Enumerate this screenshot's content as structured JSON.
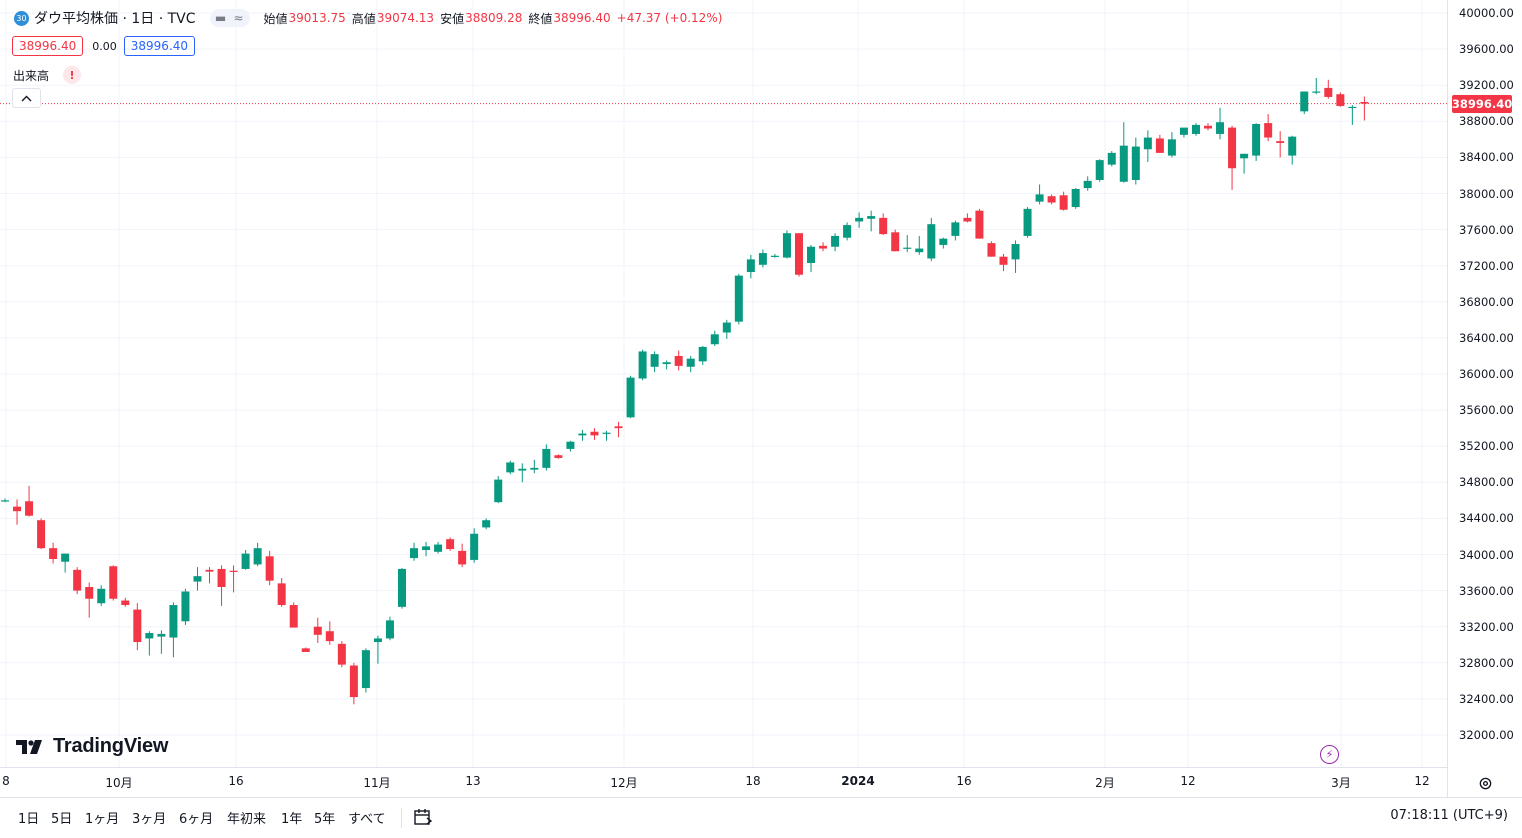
{
  "header": {
    "symbol_badge": "30",
    "title": "ダウ平均株価 · 1日 · TVC",
    "open_label": "始値",
    "open_value": "39013.75",
    "high_label": "高値",
    "high_value": "39074.13",
    "low_label": "安値",
    "low_value": "38809.28",
    "close_label": "終値",
    "close_value": "38996.40",
    "change": "+47.37 (+0.12%)"
  },
  "trade": {
    "sell_price": "38996.40",
    "spread": "0.00",
    "buy_price": "38996.40"
  },
  "volume_label": "出来高",
  "volume_warning": "!",
  "brand": "TradingView",
  "last_price_label": "38996.40",
  "timeframes": [
    "1日",
    "5日",
    "1ヶ月",
    "3ヶ月",
    "6ヶ月",
    "年初来",
    "1年",
    "5年",
    "すべて"
  ],
  "clock": "07:18:11 (UTC+9)",
  "colors": {
    "up": "#089981",
    "down": "#f23645",
    "grid": "#f0f3fa"
  },
  "chart_data": {
    "type": "candlestick",
    "y_axis_ticks": [
      "40000.00",
      "39600.00",
      "39200.00",
      "38800.00",
      "38400.00",
      "38000.00",
      "37600.00",
      "37200.00",
      "36800.00",
      "36400.00",
      "36000.00",
      "35600.00",
      "35200.00",
      "34800.00",
      "34400.00",
      "34000.00",
      "33600.00",
      "33200.00",
      "32800.00",
      "32400.00",
      "32000.00"
    ],
    "x_axis_ticks": [
      "8",
      "10月",
      "16",
      "11月",
      "13",
      "12月",
      "18",
      "2024",
      "16",
      "2月",
      "12",
      "3月",
      "12"
    ],
    "ylim": [
      31850,
      40100
    ],
    "candles": [
      {
        "o": 34600,
        "h": 34620,
        "l": 34580,
        "c": 34600
      },
      {
        "o": 34530,
        "h": 34610,
        "l": 34330,
        "c": 34480
      },
      {
        "o": 34590,
        "h": 34760,
        "l": 34420,
        "c": 34430
      },
      {
        "o": 34380,
        "h": 34400,
        "l": 34060,
        "c": 34070
      },
      {
        "o": 34070,
        "h": 34130,
        "l": 33900,
        "c": 33950
      },
      {
        "o": 33920,
        "h": 34000,
        "l": 33800,
        "c": 34010
      },
      {
        "o": 33830,
        "h": 33860,
        "l": 33560,
        "c": 33600
      },
      {
        "o": 33640,
        "h": 33690,
        "l": 33300,
        "c": 33510
      },
      {
        "o": 33460,
        "h": 33660,
        "l": 33430,
        "c": 33620
      },
      {
        "o": 33870,
        "h": 33880,
        "l": 33490,
        "c": 33510
      },
      {
        "o": 33490,
        "h": 33520,
        "l": 33420,
        "c": 33440
      },
      {
        "o": 33390,
        "h": 33460,
        "l": 32940,
        "c": 33030
      },
      {
        "o": 33070,
        "h": 33150,
        "l": 32880,
        "c": 33130
      },
      {
        "o": 33090,
        "h": 33160,
        "l": 32900,
        "c": 33120
      },
      {
        "o": 33080,
        "h": 33470,
        "l": 32860,
        "c": 33440
      },
      {
        "o": 33260,
        "h": 33620,
        "l": 33220,
        "c": 33590
      },
      {
        "o": 33700,
        "h": 33860,
        "l": 33600,
        "c": 33760
      },
      {
        "o": 33830,
        "h": 33860,
        "l": 33680,
        "c": 33810
      },
      {
        "o": 33840,
        "h": 33880,
        "l": 33430,
        "c": 33640
      },
      {
        "o": 33820,
        "h": 33880,
        "l": 33580,
        "c": 33810
      },
      {
        "o": 33840,
        "h": 34050,
        "l": 33830,
        "c": 34010
      },
      {
        "o": 33890,
        "h": 34130,
        "l": 33870,
        "c": 34070
      },
      {
        "o": 33980,
        "h": 34040,
        "l": 33660,
        "c": 33710
      },
      {
        "o": 33680,
        "h": 33740,
        "l": 33420,
        "c": 33440
      },
      {
        "o": 33440,
        "h": 33470,
        "l": 33200,
        "c": 33190
      },
      {
        "o": 32960,
        "h": 32970,
        "l": 32920,
        "c": 32920
      },
      {
        "o": 33200,
        "h": 33300,
        "l": 33020,
        "c": 33110
      },
      {
        "o": 33150,
        "h": 33260,
        "l": 33000,
        "c": 33040
      },
      {
        "o": 33010,
        "h": 33040,
        "l": 32750,
        "c": 32780
      },
      {
        "o": 32770,
        "h": 32800,
        "l": 32340,
        "c": 32420
      },
      {
        "o": 32520,
        "h": 32960,
        "l": 32470,
        "c": 32940
      },
      {
        "o": 33030,
        "h": 33100,
        "l": 32790,
        "c": 33070
      },
      {
        "o": 33070,
        "h": 33310,
        "l": 33050,
        "c": 33270
      },
      {
        "o": 33420,
        "h": 33850,
        "l": 33400,
        "c": 33840
      },
      {
        "o": 33960,
        "h": 34130,
        "l": 33930,
        "c": 34070
      },
      {
        "o": 34050,
        "h": 34140,
        "l": 33980,
        "c": 34090
      },
      {
        "o": 34030,
        "h": 34140,
        "l": 34010,
        "c": 34110
      },
      {
        "o": 34170,
        "h": 34190,
        "l": 34040,
        "c": 34060
      },
      {
        "o": 34040,
        "h": 34120,
        "l": 33860,
        "c": 33890
      },
      {
        "o": 33940,
        "h": 34290,
        "l": 33910,
        "c": 34230
      },
      {
        "o": 34300,
        "h": 34400,
        "l": 34280,
        "c": 34380
      },
      {
        "o": 34580,
        "h": 34870,
        "l": 34570,
        "c": 34830
      },
      {
        "o": 34910,
        "h": 35040,
        "l": 34890,
        "c": 35020
      },
      {
        "o": 34930,
        "h": 35010,
        "l": 34800,
        "c": 34950
      },
      {
        "o": 34940,
        "h": 35050,
        "l": 34900,
        "c": 34960
      },
      {
        "o": 34960,
        "h": 35220,
        "l": 34930,
        "c": 35170
      },
      {
        "o": 35100,
        "h": 35110,
        "l": 35060,
        "c": 35070
      },
      {
        "o": 35170,
        "h": 35260,
        "l": 35140,
        "c": 35250
      },
      {
        "o": 35320,
        "h": 35380,
        "l": 35260,
        "c": 35340
      },
      {
        "o": 35360,
        "h": 35400,
        "l": 35270,
        "c": 35320
      },
      {
        "o": 35340,
        "h": 35370,
        "l": 35260,
        "c": 35350
      },
      {
        "o": 35420,
        "h": 35470,
        "l": 35300,
        "c": 35400
      },
      {
        "o": 35520,
        "h": 35980,
        "l": 35510,
        "c": 35960
      },
      {
        "o": 35950,
        "h": 36270,
        "l": 35930,
        "c": 36250
      },
      {
        "o": 36080,
        "h": 36250,
        "l": 36020,
        "c": 36220
      },
      {
        "o": 36110,
        "h": 36150,
        "l": 36050,
        "c": 36130
      },
      {
        "o": 36200,
        "h": 36260,
        "l": 36040,
        "c": 36090
      },
      {
        "o": 36080,
        "h": 36200,
        "l": 36020,
        "c": 36170
      },
      {
        "o": 36140,
        "h": 36310,
        "l": 36100,
        "c": 36300
      },
      {
        "o": 36330,
        "h": 36480,
        "l": 36310,
        "c": 36440
      },
      {
        "o": 36460,
        "h": 36600,
        "l": 36390,
        "c": 36570
      },
      {
        "o": 36580,
        "h": 37110,
        "l": 36550,
        "c": 37090
      },
      {
        "o": 37130,
        "h": 37320,
        "l": 37060,
        "c": 37270
      },
      {
        "o": 37210,
        "h": 37380,
        "l": 37180,
        "c": 37340
      },
      {
        "o": 37310,
        "h": 37330,
        "l": 37290,
        "c": 37310
      },
      {
        "o": 37290,
        "h": 37590,
        "l": 37280,
        "c": 37560
      },
      {
        "o": 37560,
        "h": 37560,
        "l": 37080,
        "c": 37100
      },
      {
        "o": 37230,
        "h": 37430,
        "l": 37130,
        "c": 37410
      },
      {
        "o": 37420,
        "h": 37460,
        "l": 37360,
        "c": 37390
      },
      {
        "o": 37410,
        "h": 37560,
        "l": 37360,
        "c": 37530
      },
      {
        "o": 37510,
        "h": 37680,
        "l": 37480,
        "c": 37650
      },
      {
        "o": 37690,
        "h": 37790,
        "l": 37620,
        "c": 37730
      },
      {
        "o": 37720,
        "h": 37810,
        "l": 37580,
        "c": 37750
      },
      {
        "o": 37730,
        "h": 37780,
        "l": 37540,
        "c": 37550
      },
      {
        "o": 37570,
        "h": 37600,
        "l": 37360,
        "c": 37360
      },
      {
        "o": 37390,
        "h": 37540,
        "l": 37350,
        "c": 37400
      },
      {
        "o": 37350,
        "h": 37530,
        "l": 37320,
        "c": 37390
      },
      {
        "o": 37280,
        "h": 37730,
        "l": 37250,
        "c": 37660
      },
      {
        "o": 37430,
        "h": 37510,
        "l": 37390,
        "c": 37500
      },
      {
        "o": 37530,
        "h": 37700,
        "l": 37480,
        "c": 37680
      },
      {
        "o": 37730,
        "h": 37780,
        "l": 37680,
        "c": 37690
      },
      {
        "o": 37810,
        "h": 37830,
        "l": 37500,
        "c": 37500
      },
      {
        "o": 37450,
        "h": 37470,
        "l": 37300,
        "c": 37300
      },
      {
        "o": 37300,
        "h": 37330,
        "l": 37140,
        "c": 37210
      },
      {
        "o": 37270,
        "h": 37480,
        "l": 37120,
        "c": 37440
      },
      {
        "o": 37530,
        "h": 37850,
        "l": 37510,
        "c": 37830
      },
      {
        "o": 37910,
        "h": 38100,
        "l": 37880,
        "c": 37990
      },
      {
        "o": 37970,
        "h": 37990,
        "l": 37880,
        "c": 37900
      },
      {
        "o": 37980,
        "h": 38020,
        "l": 37810,
        "c": 37820
      },
      {
        "o": 37850,
        "h": 38060,
        "l": 37830,
        "c": 38050
      },
      {
        "o": 38060,
        "h": 38190,
        "l": 38030,
        "c": 38140
      },
      {
        "o": 38150,
        "h": 38380,
        "l": 38130,
        "c": 38370
      },
      {
        "o": 38320,
        "h": 38470,
        "l": 38300,
        "c": 38450
      },
      {
        "o": 38130,
        "h": 38790,
        "l": 38120,
        "c": 38530
      },
      {
        "o": 38150,
        "h": 38620,
        "l": 38100,
        "c": 38520
      },
      {
        "o": 38490,
        "h": 38700,
        "l": 38350,
        "c": 38620
      },
      {
        "o": 38610,
        "h": 38650,
        "l": 38450,
        "c": 38450
      },
      {
        "o": 38420,
        "h": 38680,
        "l": 38400,
        "c": 38600
      },
      {
        "o": 38650,
        "h": 38730,
        "l": 38620,
        "c": 38730
      },
      {
        "o": 38660,
        "h": 38780,
        "l": 38640,
        "c": 38760
      },
      {
        "o": 38750,
        "h": 38780,
        "l": 38700,
        "c": 38720
      },
      {
        "o": 38660,
        "h": 38950,
        "l": 38600,
        "c": 38790
      },
      {
        "o": 38730,
        "h": 38750,
        "l": 38040,
        "c": 38280
      },
      {
        "o": 38390,
        "h": 38440,
        "l": 38220,
        "c": 38440
      },
      {
        "o": 38420,
        "h": 38780,
        "l": 38360,
        "c": 38770
      },
      {
        "o": 38780,
        "h": 38880,
        "l": 38580,
        "c": 38620
      },
      {
        "o": 38580,
        "h": 38690,
        "l": 38400,
        "c": 38560
      },
      {
        "o": 38420,
        "h": 38640,
        "l": 38320,
        "c": 38630
      },
      {
        "o": 38910,
        "h": 39130,
        "l": 38880,
        "c": 39130
      },
      {
        "o": 39120,
        "h": 39280,
        "l": 39100,
        "c": 39130
      },
      {
        "o": 39170,
        "h": 39260,
        "l": 39050,
        "c": 39070
      },
      {
        "o": 39100,
        "h": 39120,
        "l": 38960,
        "c": 38970
      },
      {
        "o": 38950,
        "h": 38980,
        "l": 38760,
        "c": 38960
      },
      {
        "o": 39013.75,
        "h": 39074.13,
        "l": 38809.28,
        "c": 38996.4
      }
    ]
  }
}
